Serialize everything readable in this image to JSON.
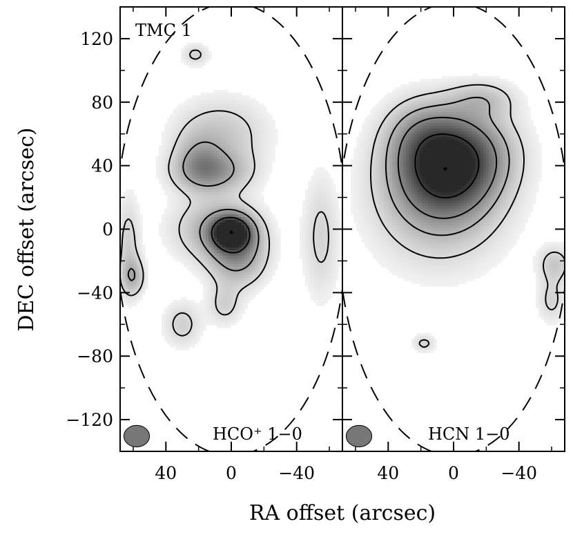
{
  "chart_data": {
    "type": "heatmap",
    "xlabel": "RA offset (arcsec)",
    "ylabel": "DEC offset (arcsec)",
    "xlim": [
      68,
      -68
    ],
    "ylim": [
      -140,
      140
    ],
    "x_ticks": [
      40,
      0,
      -40
    ],
    "x_tick_labels": [
      "40",
      "0",
      "−40"
    ],
    "y_ticks": [
      120,
      80,
      40,
      0,
      -40,
      -80,
      -120
    ],
    "y_tick_labels": [
      "120",
      "80",
      "40",
      "0",
      "−40",
      "−80",
      "−120"
    ],
    "source_label": "TMC 1",
    "colormap": "grayscale",
    "panels": [
      {
        "label": "HCO⁺ 1−0",
        "peak": {
          "ra": 0,
          "dec": -2
        },
        "clumps": [
          {
            "ra": 0,
            "dec": -2,
            "sra": 8,
            "sdec": 7,
            "amp": 1.0
          },
          {
            "ra": -4,
            "dec": -16,
            "sra": 12,
            "sdec": 14,
            "amp": 0.45
          },
          {
            "ra": 10,
            "dec": 0,
            "sra": 18,
            "sdec": 14,
            "amp": 0.35
          },
          {
            "ra": 12,
            "dec": 36,
            "sra": 16,
            "sdec": 9,
            "amp": 0.42
          },
          {
            "ra": 6,
            "dec": 60,
            "sra": 20,
            "sdec": 16,
            "amp": 0.25
          },
          {
            "ra": 20,
            "dec": 45,
            "sra": 10,
            "sdec": 12,
            "amp": 0.22
          },
          {
            "ra": 30,
            "dec": -60,
            "sra": 8,
            "sdec": 10,
            "amp": 0.22
          },
          {
            "ra": 4,
            "dec": -48,
            "sra": 7,
            "sdec": 9,
            "amp": 0.2
          },
          {
            "ra": -55,
            "dec": -5,
            "sra": 8,
            "sdec": 28,
            "amp": 0.2
          },
          {
            "ra": 63,
            "dec": -10,
            "sra": 5,
            "sdec": 22,
            "amp": 0.22
          },
          {
            "ra": 60,
            "dec": -30,
            "sra": 5,
            "sdec": 8,
            "amp": 0.3
          },
          {
            "ra": 22,
            "dec": 110,
            "sra": 6,
            "sdec": 5,
            "amp": 0.2
          }
        ],
        "contour_levels": [
          0.17,
          0.4,
          0.78
        ]
      },
      {
        "label": "HCN 1−0",
        "peak": {
          "ra": 5,
          "dec": 38
        },
        "clumps": [
          {
            "ra": 5,
            "dec": 38,
            "sra": 20,
            "sdec": 20,
            "amp": 0.75
          },
          {
            "ra": 9,
            "dec": 20,
            "sra": 28,
            "sdec": 30,
            "amp": 0.35
          },
          {
            "ra": -12,
            "dec": 50,
            "sra": 20,
            "sdec": 18,
            "amp": 0.3
          },
          {
            "ra": 20,
            "dec": 60,
            "sra": 16,
            "sdec": 16,
            "amp": 0.25
          },
          {
            "ra": -18,
            "dec": 82,
            "sra": 14,
            "sdec": 8,
            "amp": 0.22
          },
          {
            "ra": 5,
            "dec": 40,
            "sra": 6,
            "sdec": 5,
            "amp": 0.25
          },
          {
            "ra": -62,
            "dec": -22,
            "sra": 7,
            "sdec": 8,
            "amp": 0.25
          },
          {
            "ra": -60,
            "dec": -45,
            "sra": 6,
            "sdec": 10,
            "amp": 0.2
          },
          {
            "ra": 18,
            "dec": -72,
            "sra": 5,
            "sdec": 4,
            "amp": 0.2
          }
        ],
        "contour_levels": [
          0.17,
          0.34,
          0.55,
          0.9
        ]
      }
    ],
    "beam": {
      "fwhm_arcsec": 14
    },
    "grid": false
  }
}
